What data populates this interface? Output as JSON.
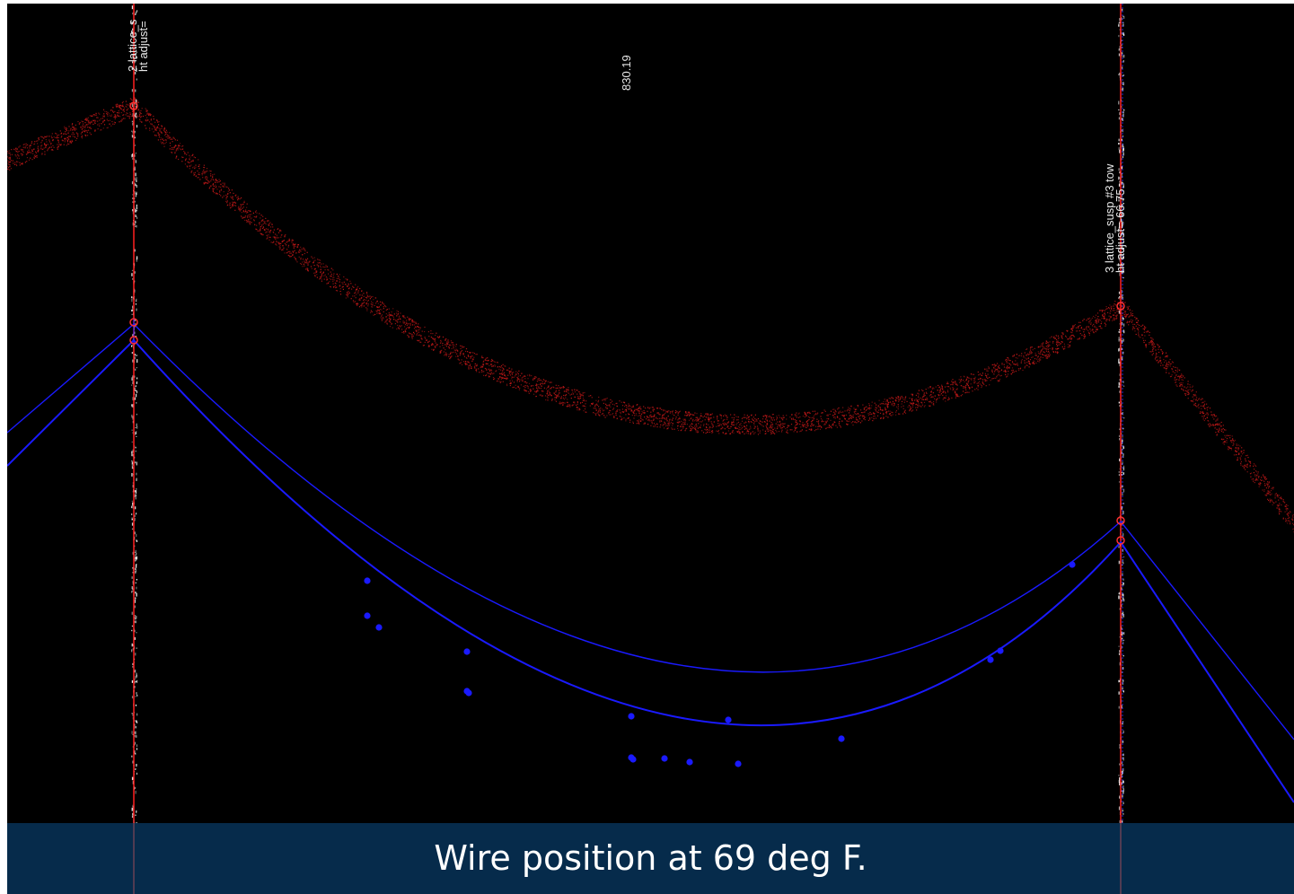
{
  "span": {
    "length_label": "830.19"
  },
  "structures": [
    {
      "name_label": "2 lattice_s",
      "adjust_label": "ht adjust="
    },
    {
      "name_label": "3 lattice_susp #3 tow",
      "adjust_label": "ht adjust=-66.75"
    }
  ],
  "caption": "Wire position at 69 deg F.",
  "colors": {
    "background": "#000000",
    "point_cloud": "#c01818",
    "wire": "#1a1aff",
    "structure_line": "#ff2020",
    "caption_bar": "#062b4b",
    "caption_text": "#ffffff"
  },
  "icons": [
    "attachment-point-icon",
    "wire-marker-icon"
  ]
}
